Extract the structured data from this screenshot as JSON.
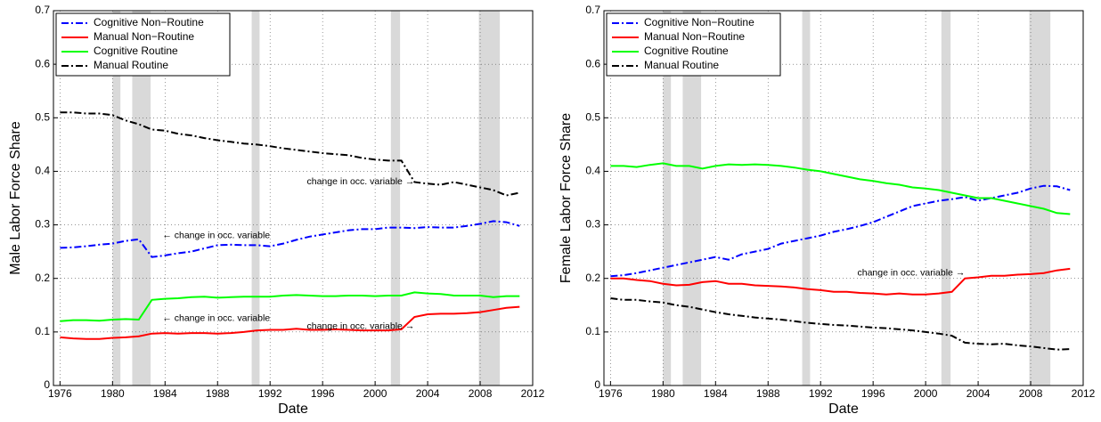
{
  "chart_data": [
    {
      "type": "line",
      "xlabel": "Date",
      "ylabel": "Male Labor Force Share",
      "xlim": [
        1975.5,
        2012
      ],
      "ylim": [
        0,
        0.7
      ],
      "xticks": [
        1976,
        1980,
        1984,
        1988,
        1992,
        1996,
        2000,
        2004,
        2008,
        2012
      ],
      "yticks": [
        0,
        0.1,
        0.2,
        0.3,
        0.4,
        0.5,
        0.6,
        0.7
      ],
      "grid": true,
      "legend": "upper-left",
      "recessions": [
        [
          1980,
          1980.6
        ],
        [
          1981.5,
          1982.9
        ],
        [
          1990.6,
          1991.2
        ],
        [
          2001.2,
          2001.9
        ],
        [
          2007.9,
          2009.5
        ]
      ],
      "annotations": [
        "← change in occ. variable",
        "← change in occ. variable",
        "change in occ. variable →",
        "change in occ. variable →"
      ],
      "x": [
        1976,
        1977,
        1978,
        1979,
        1980,
        1981,
        1982,
        1983,
        1984,
        1985,
        1986,
        1987,
        1988,
        1989,
        1990,
        1991,
        1992,
        1993,
        1994,
        1995,
        1996,
        1997,
        1998,
        1999,
        2000,
        2001,
        2002,
        2003,
        2004,
        2005,
        2006,
        2007,
        2008,
        2009,
        2010,
        2011
      ],
      "series": [
        {
          "name": "Cognitive Non−Routine",
          "color": "#0000ff",
          "style": "dashdot",
          "values": [
            0.257,
            0.258,
            0.26,
            0.263,
            0.265,
            0.27,
            0.273,
            0.24,
            0.243,
            0.247,
            0.25,
            0.256,
            0.262,
            0.263,
            0.262,
            0.262,
            0.26,
            0.265,
            0.272,
            0.278,
            0.282,
            0.286,
            0.29,
            0.292,
            0.292,
            0.295,
            0.295,
            0.294,
            0.296,
            0.295,
            0.295,
            0.298,
            0.302,
            0.307,
            0.305,
            0.298
          ]
        },
        {
          "name": "Manual Non−Routine",
          "color": "#ff0000",
          "style": "solid",
          "values": [
            0.09,
            0.088,
            0.087,
            0.087,
            0.089,
            0.09,
            0.092,
            0.097,
            0.098,
            0.097,
            0.098,
            0.098,
            0.097,
            0.098,
            0.1,
            0.103,
            0.104,
            0.104,
            0.106,
            0.104,
            0.104,
            0.105,
            0.104,
            0.103,
            0.103,
            0.103,
            0.105,
            0.128,
            0.133,
            0.134,
            0.134,
            0.135,
            0.137,
            0.141,
            0.145,
            0.147
          ]
        },
        {
          "name": "Cognitive Routine",
          "color": "#00ff00",
          "style": "solid",
          "values": [
            0.12,
            0.122,
            0.122,
            0.121,
            0.123,
            0.124,
            0.123,
            0.16,
            0.162,
            0.163,
            0.165,
            0.166,
            0.164,
            0.165,
            0.166,
            0.166,
            0.166,
            0.168,
            0.169,
            0.168,
            0.167,
            0.167,
            0.168,
            0.168,
            0.167,
            0.168,
            0.168,
            0.174,
            0.172,
            0.171,
            0.168,
            0.168,
            0.168,
            0.165,
            0.167,
            0.167
          ]
        },
        {
          "name": "Manual Routine",
          "color": "#000000",
          "style": "dashdot",
          "values": [
            0.51,
            0.51,
            0.508,
            0.508,
            0.505,
            0.495,
            0.488,
            0.478,
            0.476,
            0.47,
            0.467,
            0.462,
            0.458,
            0.455,
            0.452,
            0.45,
            0.447,
            0.443,
            0.44,
            0.437,
            0.434,
            0.432,
            0.43,
            0.425,
            0.422,
            0.42,
            0.42,
            0.38,
            0.377,
            0.375,
            0.38,
            0.375,
            0.37,
            0.365,
            0.355,
            0.36
          ]
        }
      ]
    },
    {
      "type": "line",
      "xlabel": "Date",
      "ylabel": "Female Labor Force Share",
      "xlim": [
        1975.5,
        2012
      ],
      "ylim": [
        0,
        0.7
      ],
      "xticks": [
        1976,
        1980,
        1984,
        1988,
        1992,
        1996,
        2000,
        2004,
        2008,
        2012
      ],
      "yticks": [
        0,
        0.1,
        0.2,
        0.3,
        0.4,
        0.5,
        0.6,
        0.7
      ],
      "grid": true,
      "legend": "upper-left",
      "recessions": [
        [
          1980,
          1980.6
        ],
        [
          1981.5,
          1982.9
        ],
        [
          1990.6,
          1991.2
        ],
        [
          2001.2,
          2001.9
        ],
        [
          2007.9,
          2009.5
        ]
      ],
      "annotations": [
        "change in occ. variable →"
      ],
      "x": [
        1976,
        1977,
        1978,
        1979,
        1980,
        1981,
        1982,
        1983,
        1984,
        1985,
        1986,
        1987,
        1988,
        1989,
        1990,
        1991,
        1992,
        1993,
        1994,
        1995,
        1996,
        1997,
        1998,
        1999,
        2000,
        2001,
        2002,
        2003,
        2004,
        2005,
        2006,
        2007,
        2008,
        2009,
        2010,
        2011
      ],
      "series": [
        {
          "name": "Cognitive Non−Routine",
          "color": "#0000ff",
          "style": "dashdot",
          "values": [
            0.204,
            0.206,
            0.21,
            0.215,
            0.22,
            0.225,
            0.23,
            0.235,
            0.24,
            0.235,
            0.245,
            0.25,
            0.255,
            0.265,
            0.27,
            0.275,
            0.28,
            0.287,
            0.292,
            0.298,
            0.305,
            0.315,
            0.325,
            0.335,
            0.34,
            0.345,
            0.348,
            0.352,
            0.345,
            0.35,
            0.355,
            0.36,
            0.368,
            0.373,
            0.372,
            0.365
          ]
        },
        {
          "name": "Manual Non−Routine",
          "color": "#ff0000",
          "style": "solid",
          "values": [
            0.2,
            0.2,
            0.197,
            0.195,
            0.19,
            0.187,
            0.188,
            0.193,
            0.195,
            0.19,
            0.19,
            0.187,
            0.186,
            0.185,
            0.183,
            0.18,
            0.178,
            0.175,
            0.175,
            0.173,
            0.172,
            0.17,
            0.172,
            0.17,
            0.17,
            0.172,
            0.175,
            0.2,
            0.202,
            0.205,
            0.205,
            0.207,
            0.208,
            0.21,
            0.215,
            0.218
          ]
        },
        {
          "name": "Cognitive Routine",
          "color": "#00ff00",
          "style": "solid",
          "values": [
            0.41,
            0.41,
            0.408,
            0.412,
            0.415,
            0.41,
            0.41,
            0.405,
            0.41,
            0.413,
            0.412,
            0.413,
            0.412,
            0.41,
            0.407,
            0.403,
            0.4,
            0.395,
            0.39,
            0.385,
            0.382,
            0.378,
            0.375,
            0.37,
            0.368,
            0.365,
            0.36,
            0.355,
            0.35,
            0.35,
            0.345,
            0.34,
            0.335,
            0.33,
            0.322,
            0.32
          ]
        },
        {
          "name": "Manual Routine",
          "color": "#000000",
          "style": "dashdot",
          "values": [
            0.163,
            0.16,
            0.16,
            0.157,
            0.155,
            0.15,
            0.147,
            0.142,
            0.137,
            0.133,
            0.13,
            0.127,
            0.125,
            0.123,
            0.12,
            0.117,
            0.115,
            0.113,
            0.112,
            0.11,
            0.108,
            0.107,
            0.105,
            0.103,
            0.1,
            0.097,
            0.093,
            0.08,
            0.078,
            0.077,
            0.078,
            0.075,
            0.073,
            0.07,
            0.067,
            0.068
          ]
        }
      ]
    }
  ]
}
